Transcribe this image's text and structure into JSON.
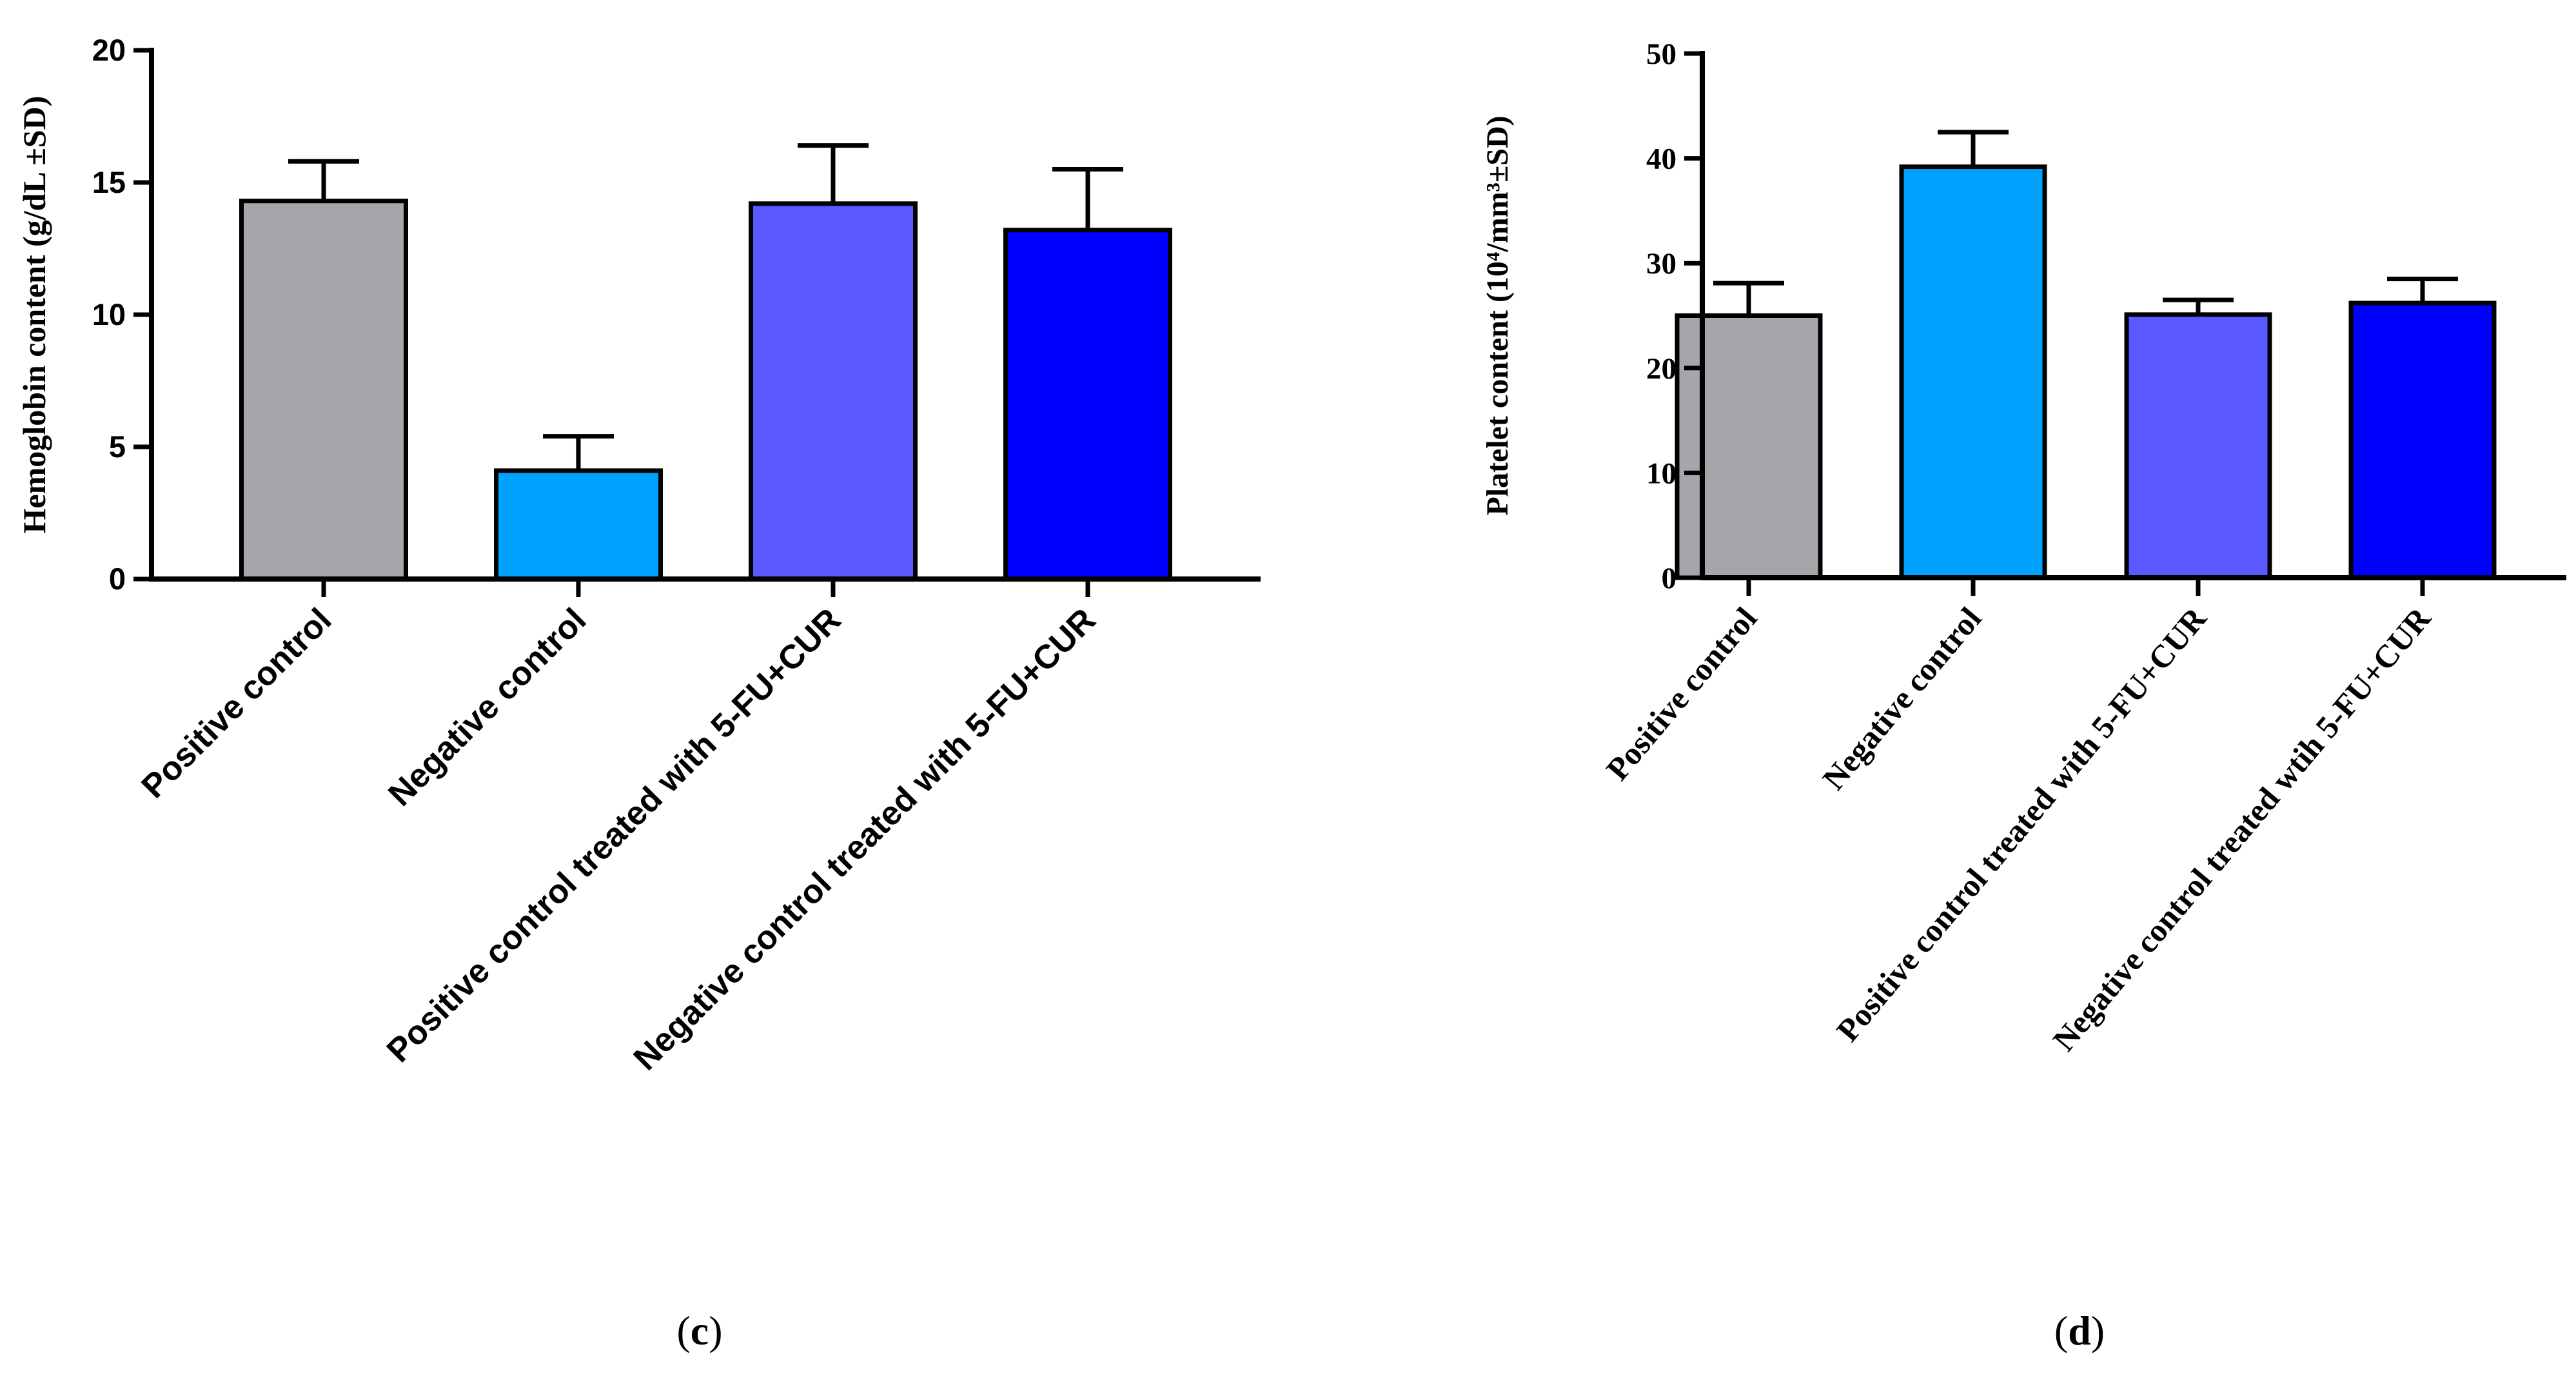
{
  "chart_data": [
    {
      "type": "bar",
      "panel": "(c)",
      "panel_letter": "c",
      "ylabel": "Hemoglobin content (g/dL ±SD)",
      "ylim": [
        0,
        20
      ],
      "yticks": [
        0,
        5,
        10,
        15,
        20
      ],
      "categories": [
        "Positive control",
        "Negative control",
        "Positive control treated with 5-FU+CUR",
        "Negative control treated with 5-FU+CUR"
      ],
      "values": [
        14.3,
        4.1,
        14.2,
        13.2
      ],
      "errors": [
        1.5,
        1.3,
        2.2,
        2.3
      ],
      "colors": [
        "#a6a6aa",
        "#00a2ff",
        "#5959ff",
        "#0000ff"
      ],
      "grid": false,
      "legend": "none"
    },
    {
      "type": "bar",
      "panel": "(d)",
      "panel_letter": "d",
      "ylabel": "Platelet content (10⁴/mm³±SD)",
      "ylim": [
        0,
        50
      ],
      "yticks": [
        0,
        10,
        20,
        30,
        40,
        50
      ],
      "categories": [
        "Positive control",
        "Negative control",
        "Positive control treated with 5-FU+CUR",
        "Negative control treated wtih 5-FU+CUR"
      ],
      "values": [
        25,
        39.2,
        25.1,
        26.2
      ],
      "errors": [
        3.1,
        3.3,
        1.4,
        2.3
      ],
      "colors": [
        "#a6a6aa",
        "#00a2ff",
        "#5959ff",
        "#0000ff"
      ],
      "grid": false,
      "legend": "none"
    }
  ]
}
